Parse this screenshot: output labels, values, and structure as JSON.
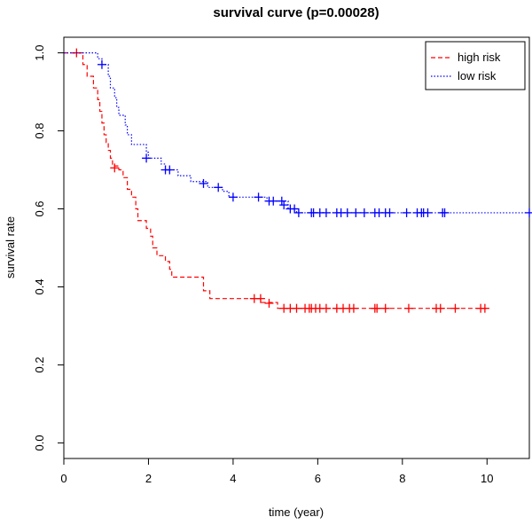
{
  "chart_data": {
    "type": "line",
    "title": "survival curve (p=0.00028)",
    "xlabel": "time (year)",
    "ylabel": "survival rate",
    "xlim": [
      0,
      11
    ],
    "ylim": [
      0,
      1
    ],
    "x_ticks": [
      0,
      2,
      4,
      6,
      8,
      10
    ],
    "y_ticks": [
      0.0,
      0.2,
      0.4,
      0.6,
      0.8,
      1.0
    ],
    "x_tick_labels": [
      "0",
      "2",
      "4",
      "6",
      "8",
      "10"
    ],
    "y_tick_labels": [
      "0.0",
      "0.2",
      "0.4",
      "0.6",
      "0.8",
      "1.0"
    ],
    "grid": false,
    "legend_position": "top-right",
    "series": [
      {
        "name": "high risk",
        "color": "#ff0000",
        "line_style": "dashed",
        "steps": [
          [
            0,
            1.0
          ],
          [
            0.45,
            0.97
          ],
          [
            0.55,
            0.94
          ],
          [
            0.7,
            0.91
          ],
          [
            0.8,
            0.88
          ],
          [
            0.85,
            0.85
          ],
          [
            0.9,
            0.82
          ],
          [
            0.95,
            0.79
          ],
          [
            1.0,
            0.77
          ],
          [
            1.05,
            0.75
          ],
          [
            1.1,
            0.73
          ],
          [
            1.15,
            0.71
          ],
          [
            1.3,
            0.7
          ],
          [
            1.4,
            0.68
          ],
          [
            1.5,
            0.65
          ],
          [
            1.6,
            0.63
          ],
          [
            1.7,
            0.6
          ],
          [
            1.75,
            0.57
          ],
          [
            1.95,
            0.55
          ],
          [
            2.05,
            0.53
          ],
          [
            2.1,
            0.5
          ],
          [
            2.2,
            0.48
          ],
          [
            2.4,
            0.465
          ],
          [
            2.5,
            0.445
          ],
          [
            2.55,
            0.425
          ],
          [
            3.3,
            0.39
          ],
          [
            3.45,
            0.37
          ],
          [
            4.65,
            0.36
          ],
          [
            5.05,
            0.345
          ]
        ],
        "end_x": 10.0,
        "censor_times": [
          0.3,
          1.2,
          4.5,
          4.65,
          4.85,
          5.2,
          5.35,
          5.5,
          5.7,
          5.8,
          5.85,
          5.95,
          6.05,
          6.2,
          6.45,
          6.6,
          6.75,
          6.85,
          7.35,
          7.4,
          7.6,
          8.15,
          8.8,
          8.9,
          9.25,
          9.85,
          9.95
        ],
        "censor_values": [
          1.0,
          0.705,
          0.37,
          0.37,
          0.358,
          0.345,
          0.345,
          0.345,
          0.345,
          0.345,
          0.345,
          0.345,
          0.345,
          0.345,
          0.345,
          0.345,
          0.345,
          0.345,
          0.345,
          0.345,
          0.345,
          0.345,
          0.345,
          0.345,
          0.345,
          0.345,
          0.345
        ]
      },
      {
        "name": "low risk",
        "color": "#0000ff",
        "line_style": "dotted",
        "steps": [
          [
            0,
            1.0
          ],
          [
            0.8,
            0.985
          ],
          [
            0.9,
            0.97
          ],
          [
            1.05,
            0.94
          ],
          [
            1.1,
            0.91
          ],
          [
            1.2,
            0.885
          ],
          [
            1.25,
            0.86
          ],
          [
            1.3,
            0.84
          ],
          [
            1.45,
            0.815
          ],
          [
            1.5,
            0.79
          ],
          [
            1.6,
            0.765
          ],
          [
            1.95,
            0.745
          ],
          [
            2.0,
            0.73
          ],
          [
            2.3,
            0.715
          ],
          [
            2.4,
            0.7
          ],
          [
            2.7,
            0.685
          ],
          [
            3.0,
            0.67
          ],
          [
            3.4,
            0.655
          ],
          [
            3.75,
            0.645
          ],
          [
            3.9,
            0.63
          ],
          [
            4.8,
            0.62
          ],
          [
            5.3,
            0.6
          ],
          [
            5.5,
            0.59
          ]
        ],
        "end_x": 11.0,
        "censor_times": [
          0.9,
          1.95,
          2.4,
          2.5,
          3.3,
          3.65,
          4.0,
          4.6,
          4.85,
          4.95,
          5.15,
          5.2,
          5.35,
          5.45,
          5.55,
          5.85,
          5.9,
          6.05,
          6.2,
          6.45,
          6.55,
          6.7,
          6.9,
          7.1,
          7.35,
          7.45,
          7.6,
          7.7,
          8.1,
          8.35,
          8.45,
          8.5,
          8.6,
          8.95,
          9.0,
          11.0
        ],
        "censor_values": [
          0.97,
          0.73,
          0.7,
          0.7,
          0.665,
          0.655,
          0.63,
          0.63,
          0.62,
          0.62,
          0.62,
          0.61,
          0.6,
          0.6,
          0.59,
          0.59,
          0.59,
          0.59,
          0.59,
          0.59,
          0.59,
          0.59,
          0.59,
          0.59,
          0.59,
          0.59,
          0.59,
          0.59,
          0.59,
          0.59,
          0.59,
          0.59,
          0.59,
          0.59,
          0.59,
          0.59
        ]
      }
    ]
  }
}
